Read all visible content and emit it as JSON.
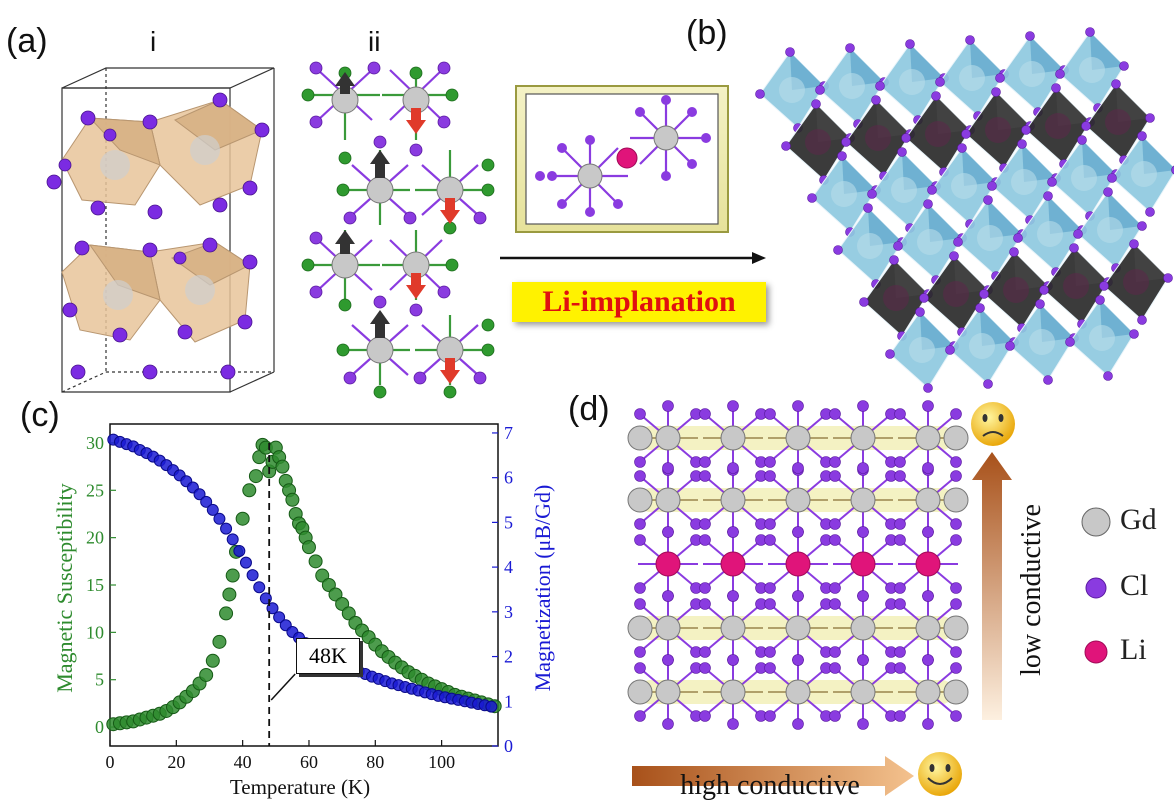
{
  "panels": {
    "a": "(a)",
    "b": "(b)",
    "c": "(c)",
    "d": "(d)",
    "a_i": "i",
    "a_ii": "ii"
  },
  "arrow_label": "Li-implanation",
  "legend": [
    {
      "label": "Gd",
      "color": "#a9a9a9"
    },
    {
      "label": "Cl",
      "color": "#8a2be2"
    },
    {
      "label": "Li",
      "color": "#e0147a"
    }
  ],
  "panel_d": {
    "low_label": "low conductive",
    "high_label": "high conductive"
  },
  "chart_data": {
    "type": "scatter",
    "xlabel": "Temperature (K)",
    "ylabel_left": "Magnetic Susceptibility",
    "ylabel_right": "Magnetization (μB/Gd)",
    "xlim": [
      0,
      117
    ],
    "ylim_left": [
      -2,
      32
    ],
    "ylim_right": [
      0,
      7.2
    ],
    "xticks": [
      0,
      20,
      40,
      60,
      80,
      100
    ],
    "yticks_left": [
      0,
      5,
      10,
      15,
      20,
      25,
      30
    ],
    "yticks_right": [
      0,
      1,
      2,
      3,
      4,
      5,
      6,
      7
    ],
    "annotation": "48K",
    "annotation_x": 48,
    "series": [
      {
        "color": "#2e8b2e",
        "axis": "left",
        "x": [
          1,
          3,
          5,
          7,
          9,
          11,
          13,
          15,
          17,
          19,
          21,
          23,
          25,
          27,
          29,
          31,
          33,
          35,
          36,
          37,
          38,
          40,
          42,
          44,
          45,
          46,
          47,
          48,
          49,
          50,
          51,
          52,
          53,
          54,
          55,
          56,
          57,
          58,
          59,
          60,
          62,
          64,
          66,
          68,
          70,
          72,
          74,
          76,
          78,
          80,
          82,
          84,
          86,
          88,
          90,
          92,
          94,
          96,
          98,
          100,
          102,
          104,
          106,
          108,
          110,
          112,
          114,
          116
        ],
        "values": [
          0.3,
          0.4,
          0.5,
          0.6,
          0.8,
          1.0,
          1.2,
          1.4,
          1.7,
          2.1,
          2.6,
          3.2,
          3.8,
          4.6,
          5.5,
          7,
          9,
          12,
          14,
          16,
          18.5,
          22,
          25,
          26.5,
          28.5,
          29.8,
          29.5,
          27,
          28,
          29.5,
          28.5,
          27.5,
          26,
          25,
          24,
          22.5,
          21.5,
          21,
          20,
          19,
          17.5,
          16,
          15,
          14,
          13,
          12,
          11,
          10.2,
          9.5,
          8.7,
          8,
          7.4,
          6.8,
          6.3,
          5.8,
          5.4,
          5,
          4.6,
          4.3,
          4,
          3.7,
          3.4,
          3.2,
          3,
          2.8,
          2.6,
          2.4,
          2.2
        ]
      },
      {
        "color": "#1a1ad4",
        "axis": "right",
        "x": [
          1,
          3,
          5,
          7,
          9,
          11,
          13,
          15,
          17,
          19,
          21,
          23,
          25,
          27,
          29,
          31,
          33,
          35,
          37,
          39,
          41,
          43,
          45,
          47,
          49,
          51,
          53,
          55,
          57,
          59,
          61,
          63,
          65,
          67,
          69,
          71,
          73,
          75,
          77,
          79,
          81,
          83,
          85,
          87,
          89,
          91,
          93,
          95,
          97,
          99,
          101,
          103,
          105,
          107,
          109,
          111,
          113,
          115
        ],
        "values": [
          6.85,
          6.8,
          6.75,
          6.7,
          6.62,
          6.55,
          6.47,
          6.38,
          6.28,
          6.17,
          6.05,
          5.92,
          5.78,
          5.63,
          5.46,
          5.28,
          5.08,
          4.86,
          4.62,
          4.36,
          4.1,
          3.82,
          3.55,
          3.3,
          3.08,
          2.88,
          2.7,
          2.55,
          2.42,
          2.3,
          2.2,
          2.1,
          2.02,
          1.94,
          1.87,
          1.8,
          1.73,
          1.67,
          1.61,
          1.55,
          1.5,
          1.45,
          1.4,
          1.36,
          1.32,
          1.28,
          1.24,
          1.2,
          1.16,
          1.12,
          1.09,
          1.06,
          1.03,
          1.0,
          0.97,
          0.94,
          0.91,
          0.88
        ]
      }
    ]
  }
}
